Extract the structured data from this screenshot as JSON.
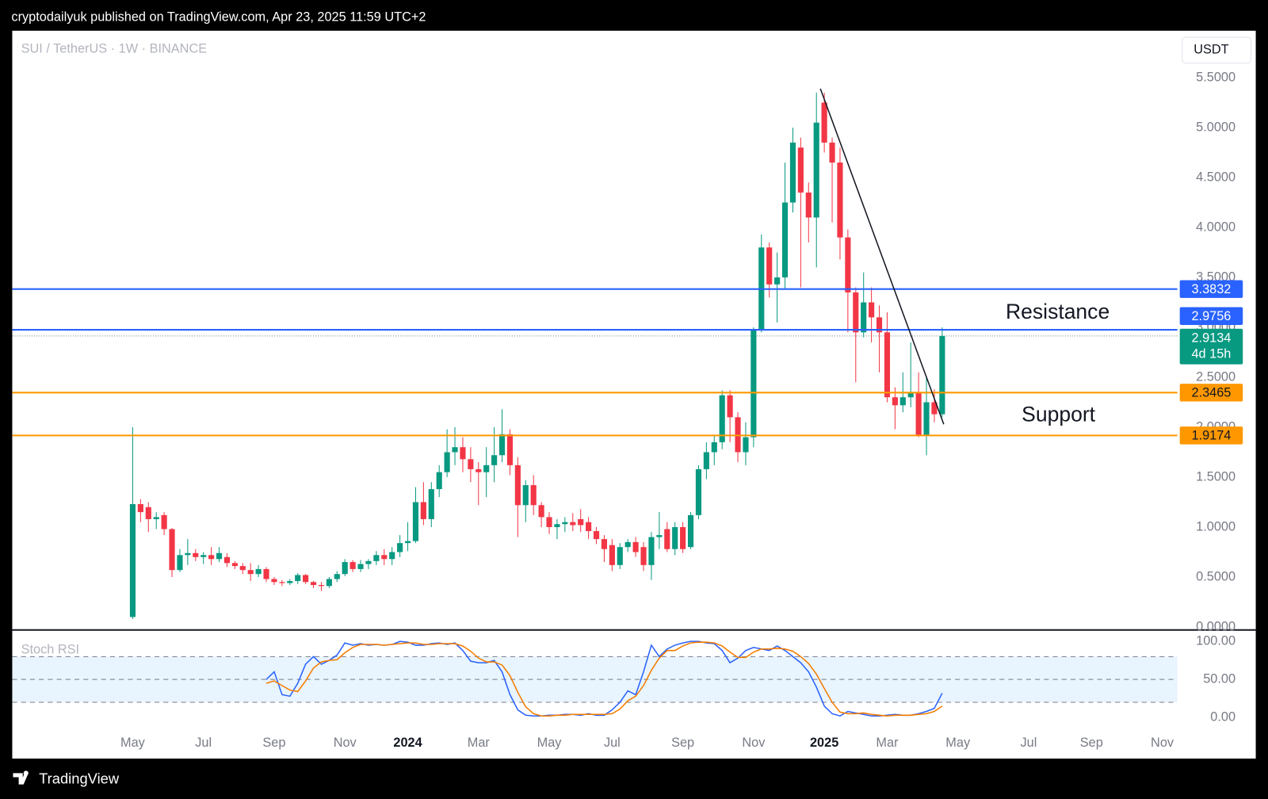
{
  "header": "cryptodailyuk published on TradingView.com, Apr 23, 2025 11:59 UTC+2",
  "footer": "TradingView",
  "chart_data": [
    {
      "type": "candlestick",
      "title": "SUI / TetherUS · 1W · BINANCE",
      "currency": "USDT",
      "up_color": "#089981",
      "down_color": "#f23645",
      "categories": [
        "May",
        null,
        null,
        null,
        null,
        null,
        null,
        null,
        null,
        "Jul",
        null,
        null,
        null,
        null,
        null,
        null,
        null,
        null,
        "Sep",
        null,
        null,
        null,
        null,
        null,
        null,
        null,
        null,
        "Nov",
        null,
        null,
        null,
        null,
        null,
        null,
        null,
        "2024",
        null,
        null,
        null,
        null,
        null,
        null,
        null,
        null,
        "Mar",
        null,
        null,
        null,
        null,
        null,
        null,
        null,
        null,
        "May",
        null,
        null,
        null,
        null,
        null,
        null,
        null,
        "Jul",
        null,
        null,
        null,
        null,
        null,
        null,
        null,
        null,
        "Sep",
        null,
        null,
        null,
        null,
        null,
        null,
        null,
        null,
        "Nov",
        null,
        null,
        null,
        null,
        null,
        null,
        null,
        null,
        "2025",
        null,
        null,
        null,
        null,
        null,
        null,
        null,
        "Mar",
        null,
        null,
        null,
        null,
        null,
        null,
        null,
        null,
        "May",
        null,
        null,
        null,
        null,
        null,
        null,
        null,
        null,
        "Jul",
        null,
        null,
        null,
        null,
        null,
        null,
        null,
        "Sep",
        null,
        null,
        null,
        null,
        null,
        null,
        null,
        null,
        "Nov"
      ],
      "open": [
        0.1,
        1.23,
        1.2,
        1.08,
        1.12,
        0.98,
        0.57,
        0.72,
        0.74,
        0.7,
        0.72,
        0.68,
        0.7,
        0.64,
        0.61,
        0.57,
        0.53,
        0.58,
        0.48,
        0.45,
        0.44,
        0.46,
        0.52,
        0.45,
        0.42,
        0.41,
        0.48,
        0.53,
        0.65,
        0.58,
        0.63,
        0.66,
        0.72,
        0.68,
        0.75,
        0.84,
        0.86,
        1.25,
        1.08,
        1.38,
        1.55,
        1.75,
        1.8,
        1.68,
        1.58,
        1.55,
        1.62,
        1.72,
        1.93,
        1.62,
        1.22,
        1.42,
        1.22,
        1.1,
        1.0,
        1.03,
        1.05,
        1.08,
        1.05,
        0.96,
        0.88,
        0.82,
        0.62,
        0.8,
        0.85,
        0.8,
        0.62,
        0.9,
        0.98,
        0.78,
        1.0,
        0.8,
        1.12,
        1.58,
        1.75,
        1.85,
        2.32,
        2.1,
        1.75,
        1.9,
        2.98,
        3.8,
        3.43,
        3.5,
        4.25,
        4.8,
        4.35,
        4.1,
        5.25,
        4.85,
        4.65,
        3.9,
        3.35,
        2.95,
        3.25,
        3.1,
        2.95,
        2.3,
        2.22,
        2.3,
        2.35,
        1.92,
        2.25,
        2.13,
        null,
        null,
        null,
        null,
        null,
        null,
        null,
        null,
        null,
        null,
        null,
        null,
        null,
        null,
        null,
        null,
        null,
        null,
        null,
        null,
        null,
        null,
        null,
        null,
        null,
        null,
        null,
        null
      ],
      "high": [
        2.0,
        1.28,
        1.25,
        1.15,
        1.15,
        0.99,
        0.78,
        0.88,
        0.78,
        0.75,
        0.8,
        0.8,
        0.74,
        0.66,
        0.64,
        0.64,
        0.62,
        0.6,
        0.5,
        0.47,
        0.48,
        0.54,
        0.53,
        0.46,
        0.45,
        0.5,
        0.56,
        0.68,
        0.67,
        0.67,
        0.68,
        0.76,
        0.78,
        0.8,
        0.92,
        1.05,
        1.4,
        1.45,
        1.45,
        1.62,
        1.98,
        2.0,
        1.9,
        1.8,
        1.65,
        1.8,
        2.0,
        2.18,
        1.98,
        1.7,
        1.47,
        1.52,
        1.25,
        1.15,
        1.08,
        1.1,
        1.14,
        1.18,
        1.1,
        1.0,
        0.92,
        0.88,
        0.84,
        0.88,
        0.9,
        0.85,
        0.95,
        1.15,
        1.05,
        1.05,
        1.05,
        1.15,
        1.62,
        1.85,
        1.92,
        2.37,
        2.37,
        2.15,
        2.05,
        3.0,
        3.93,
        3.85,
        3.75,
        4.65,
        5.0,
        4.9,
        4.45,
        5.35,
        5.35,
        4.9,
        4.8,
        3.98,
        3.4,
        3.55,
        3.4,
        3.22,
        3.15,
        2.4,
        2.55,
        2.85,
        2.55,
        2.5,
        2.38,
        3.0,
        null,
        null,
        null,
        null,
        null,
        null,
        null,
        null,
        null,
        null,
        null,
        null,
        null,
        null,
        null,
        null,
        null,
        null,
        null,
        null,
        null,
        null,
        null,
        null,
        null,
        null,
        null,
        null
      ],
      "low": [
        0.08,
        1.05,
        0.95,
        0.98,
        0.92,
        0.5,
        0.55,
        0.62,
        0.66,
        0.63,
        0.62,
        0.65,
        0.6,
        0.58,
        0.53,
        0.46,
        0.5,
        0.45,
        0.42,
        0.41,
        0.42,
        0.43,
        0.43,
        0.39,
        0.36,
        0.39,
        0.45,
        0.51,
        0.55,
        0.55,
        0.58,
        0.62,
        0.62,
        0.62,
        0.7,
        0.76,
        0.84,
        1.02,
        1.0,
        1.3,
        1.5,
        1.62,
        1.55,
        1.45,
        1.22,
        1.3,
        1.45,
        1.65,
        1.52,
        0.9,
        1.05,
        1.12,
        1.0,
        0.93,
        0.88,
        0.95,
        0.96,
        0.95,
        0.88,
        0.83,
        0.65,
        0.56,
        0.58,
        0.75,
        0.7,
        0.56,
        0.47,
        0.78,
        0.75,
        0.72,
        0.74,
        0.78,
        1.08,
        1.48,
        1.62,
        1.78,
        1.85,
        1.65,
        1.62,
        1.8,
        2.95,
        3.3,
        3.05,
        3.38,
        4.15,
        3.4,
        3.85,
        3.6,
        4.75,
        4.05,
        3.68,
        2.95,
        2.45,
        2.9,
        2.85,
        2.55,
        2.25,
        1.98,
        2.15,
        2.2,
        1.9,
        1.72,
        2.05,
        2.1,
        null,
        null,
        null,
        null,
        null,
        null,
        null,
        null,
        null,
        null,
        null,
        null,
        null,
        null,
        null,
        null,
        null,
        null,
        null,
        null,
        null,
        null,
        null,
        null,
        null,
        null,
        null,
        null
      ],
      "close": [
        1.23,
        1.15,
        1.08,
        1.1,
        0.98,
        0.57,
        0.72,
        0.74,
        0.7,
        0.72,
        0.68,
        0.74,
        0.64,
        0.61,
        0.57,
        0.53,
        0.58,
        0.48,
        0.45,
        0.44,
        0.46,
        0.52,
        0.45,
        0.42,
        0.41,
        0.48,
        0.53,
        0.65,
        0.58,
        0.63,
        0.66,
        0.72,
        0.68,
        0.75,
        0.84,
        0.86,
        1.25,
        1.08,
        1.38,
        1.55,
        1.75,
        1.8,
        1.68,
        1.58,
        1.55,
        1.62,
        1.72,
        1.93,
        1.62,
        1.22,
        1.42,
        1.22,
        1.1,
        1.0,
        1.03,
        1.05,
        1.02,
        1.02,
        0.96,
        0.88,
        0.78,
        0.62,
        0.8,
        0.85,
        0.75,
        0.62,
        0.9,
        0.92,
        0.78,
        1.0,
        0.78,
        1.12,
        1.58,
        1.75,
        1.85,
        2.32,
        2.1,
        1.75,
        1.9,
        2.98,
        3.8,
        3.43,
        3.5,
        4.25,
        4.85,
        4.35,
        4.1,
        5.05,
        4.85,
        4.65,
        3.9,
        3.35,
        2.95,
        3.25,
        3.1,
        2.95,
        2.3,
        2.22,
        2.3,
        2.35,
        1.92,
        2.25,
        2.13,
        2.9134,
        null,
        null,
        null,
        null,
        null,
        null,
        null,
        null,
        null,
        null,
        null,
        null,
        null,
        null,
        null,
        null,
        null,
        null,
        null,
        null,
        null,
        null,
        null,
        null,
        null,
        null,
        null,
        null
      ],
      "ylim": [
        -0.03,
        5.97
      ],
      "yticks": [
        {
          "value": 0,
          "label": "0.0000"
        },
        {
          "value": 0.5,
          "label": "0.5000"
        },
        {
          "value": 1,
          "label": "1.0000"
        },
        {
          "value": 1.5,
          "label": "1.5000"
        },
        {
          "value": 2,
          "label": "2.0000"
        },
        {
          "value": 2.5,
          "label": "2.5000"
        },
        {
          "value": 3,
          "label": "3.0000"
        },
        {
          "value": 3.5,
          "label": "3.5000"
        },
        {
          "value": 4,
          "label": "4.0000"
        },
        {
          "value": 4.5,
          "label": "4.5000"
        },
        {
          "value": 5,
          "label": "5.0000"
        },
        {
          "value": 5.5,
          "label": "5.5000"
        }
      ],
      "levels": [
        {
          "value": 3.3832,
          "color": "#2962ff"
        },
        {
          "value": 2.9756,
          "color": "#2962ff"
        },
        {
          "value": 2.3465,
          "color": "#ff9800"
        },
        {
          "value": 1.9174,
          "color": "#ff9800"
        }
      ],
      "last_price": {
        "value": 2.9134,
        "countdown": "4d 15h",
        "color": "#089981"
      },
      "trendline": [
        5.39,
        2.03
      ],
      "annotations": [
        "Resistance",
        "Support"
      ]
    },
    {
      "type": "line",
      "title": "Stoch RSI",
      "ylim": [
        -54,
        115
      ],
      "yticks": [
        {
          "value": 0,
          "label": "0.00"
        },
        {
          "value": 50,
          "label": "50.00"
        },
        {
          "value": 100,
          "label": "100.00"
        }
      ],
      "hlines": [
        80,
        50,
        20
      ],
      "series": [
        {
          "color": "#2962ff",
          "values": [
            null,
            null,
            null,
            null,
            null,
            null,
            null,
            null,
            null,
            null,
            null,
            null,
            null,
            null,
            null,
            null,
            null,
            50,
            60,
            30,
            28,
            45,
            70,
            80,
            70,
            75,
            82,
            98,
            95,
            97,
            95,
            96,
            95,
            96,
            100,
            99,
            95,
            95,
            97,
            98,
            96,
            98,
            88,
            74,
            72,
            72,
            75,
            60,
            30,
            10,
            3,
            2,
            2,
            3,
            3,
            4,
            4,
            3,
            5,
            3,
            3,
            10,
            20,
            35,
            30,
            60,
            95,
            80,
            90,
            95,
            98,
            100,
            100,
            98,
            97,
            88,
            72,
            78,
            88,
            92,
            90,
            88,
            94,
            88,
            80,
            72,
            60,
            40,
            15,
            5,
            2,
            8,
            6,
            4,
            2,
            2,
            3,
            4,
            3,
            3,
            5,
            8,
            12,
            32,
            null,
            null,
            null,
            null,
            null,
            null,
            null,
            null,
            null,
            null,
            null,
            null,
            null,
            null,
            null,
            null,
            null,
            null,
            null,
            null,
            null,
            null,
            null,
            null,
            null,
            null,
            null,
            null
          ]
        },
        {
          "color": "#f57c00",
          "values": [
            null,
            null,
            null,
            null,
            null,
            null,
            null,
            null,
            null,
            null,
            null,
            null,
            null,
            null,
            null,
            null,
            null,
            45,
            48,
            42,
            36,
            34,
            48,
            65,
            73,
            75,
            76,
            85,
            92,
            96,
            96,
            96,
            95,
            96,
            97,
            98,
            98,
            96,
            96,
            97,
            97,
            97,
            94,
            87,
            78,
            73,
            73,
            69,
            55,
            33,
            14,
            5,
            2,
            2,
            3,
            3,
            4,
            4,
            4,
            4,
            4,
            5,
            11,
            22,
            28,
            42,
            62,
            78,
            88,
            88,
            94,
            98,
            99,
            99,
            98,
            94,
            86,
            79,
            79,
            86,
            90,
            90,
            91,
            90,
            87,
            80,
            71,
            57,
            38,
            20,
            7,
            5,
            5,
            6,
            4,
            3,
            2,
            3,
            3,
            3,
            4,
            5,
            8,
            15,
            null,
            null,
            null,
            null,
            null,
            null,
            null,
            null,
            null,
            null,
            null,
            null,
            null,
            null,
            null,
            null,
            null,
            null,
            null,
            null,
            null,
            null,
            null,
            null,
            null,
            null,
            null,
            null
          ]
        }
      ]
    }
  ]
}
